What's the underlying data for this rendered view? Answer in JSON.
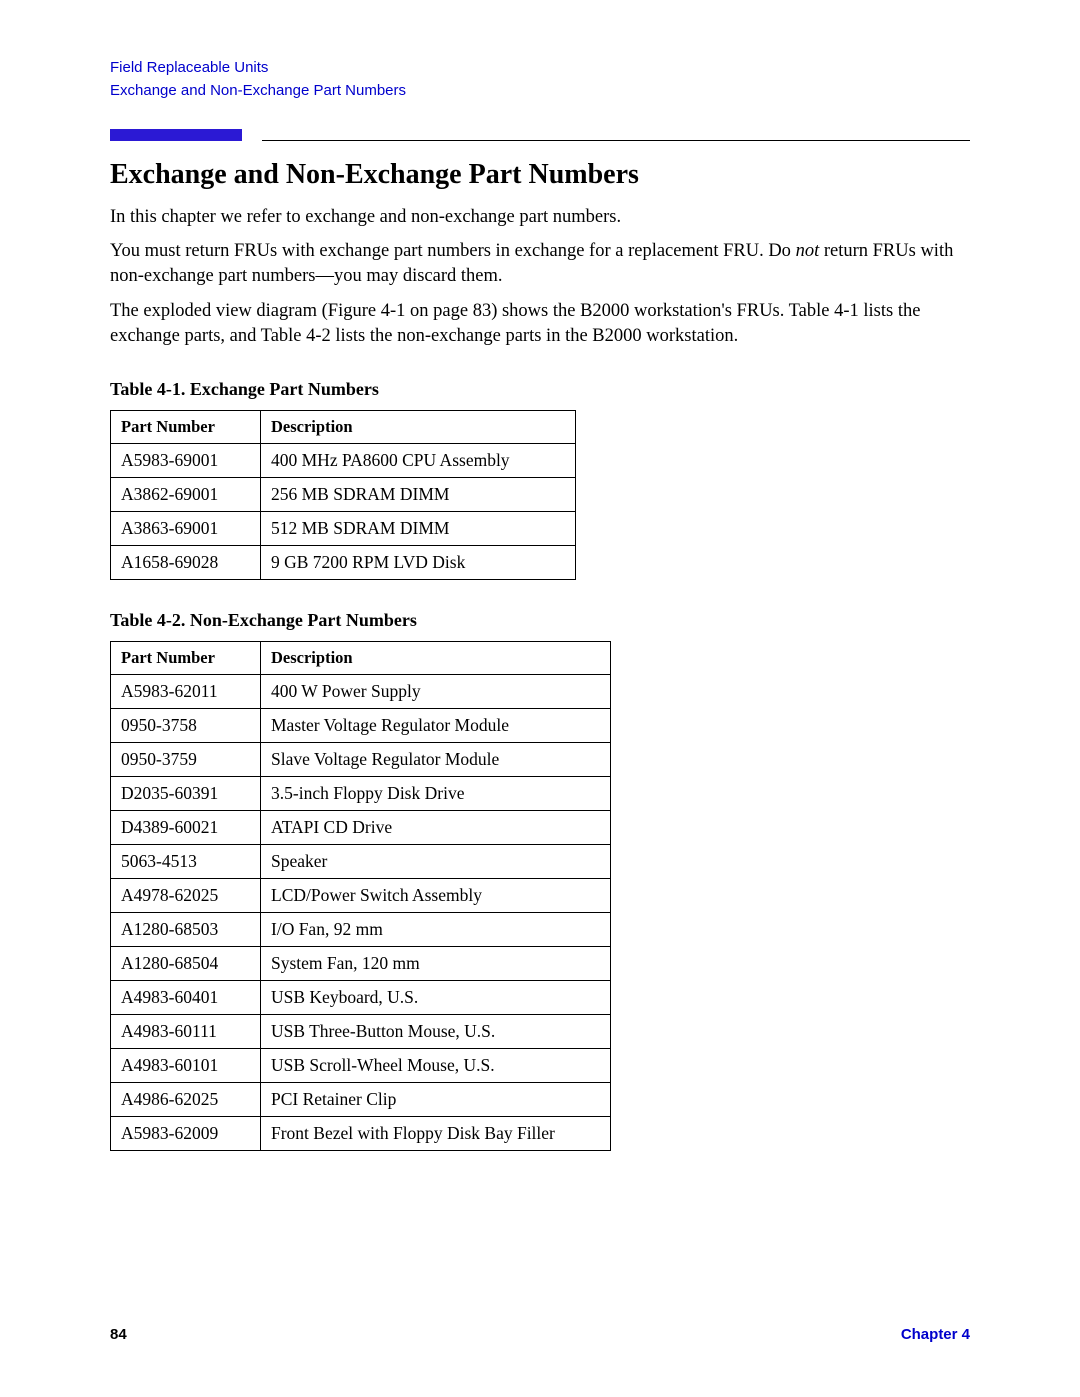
{
  "breadcrumb": {
    "line1": "Field Replaceable Units",
    "line2": "Exchange and Non-Exchange Part Numbers"
  },
  "title": "Exchange and Non-Exchange Part Numbers",
  "paragraphs": {
    "p1": "In this chapter we refer to exchange and non-exchange part numbers.",
    "p2a": "You must return FRUs with exchange part numbers in exchange for a replacement FRU. Do ",
    "p2_em": "not",
    "p2b": " return FRUs with non-exchange part numbers—you may discard them.",
    "p3": "The exploded view diagram (Figure 4-1 on page 83) shows the B2000 workstation's FRUs. Table 4-1 lists the exchange parts, and Table 4-2 lists the non-exchange parts in the B2000 workstation."
  },
  "table1": {
    "caption": "Table 4-1. Exchange Part Numbers",
    "headers": {
      "part": "Part Number",
      "desc": "Description"
    },
    "rows": [
      {
        "part": "A5983-69001",
        "desc": "400 MHz PA8600 CPU Assembly"
      },
      {
        "part": "A3862-69001",
        "desc": "256 MB SDRAM DIMM"
      },
      {
        "part": "A3863-69001",
        "desc": "512 MB SDRAM DIMM"
      },
      {
        "part": "A1658-69028",
        "desc": "9 GB 7200 RPM LVD Disk"
      }
    ]
  },
  "table2": {
    "caption": "Table 4-2. Non-Exchange Part Numbers",
    "headers": {
      "part": "Part Number",
      "desc": "Description"
    },
    "rows": [
      {
        "part": "A5983-62011",
        "desc": "400 W Power Supply"
      },
      {
        "part": "0950-3758",
        "desc": "Master Voltage Regulator Module"
      },
      {
        "part": "0950-3759",
        "desc": "Slave Voltage Regulator Module"
      },
      {
        "part": "D2035-60391",
        "desc": "3.5-inch Floppy Disk Drive"
      },
      {
        "part": "D4389-60021",
        "desc": "ATAPI CD Drive"
      },
      {
        "part": "5063-4513",
        "desc": "Speaker"
      },
      {
        "part": "A4978-62025",
        "desc": "LCD/Power Switch Assembly"
      },
      {
        "part": "A1280-68503",
        "desc": "I/O Fan, 92 mm"
      },
      {
        "part": "A1280-68504",
        "desc": "System Fan, 120 mm"
      },
      {
        "part": "A4983-60401",
        "desc": "USB Keyboard, U.S."
      },
      {
        "part": "A4983-60111",
        "desc": "USB Three-Button Mouse, U.S."
      },
      {
        "part": "A4983-60101",
        "desc": "USB Scroll-Wheel Mouse, U.S."
      },
      {
        "part": "A4986-62025",
        "desc": "PCI Retainer Clip"
      },
      {
        "part": "A5983-62009",
        "desc": "Front Bezel with Floppy Disk Bay Filler"
      }
    ]
  },
  "footer": {
    "page": "84",
    "chapter": "Chapter 4"
  },
  "colors": {
    "link": "#0000cc",
    "rule_blue": "#2b19d4",
    "text": "#000000",
    "background": "#ffffff"
  }
}
